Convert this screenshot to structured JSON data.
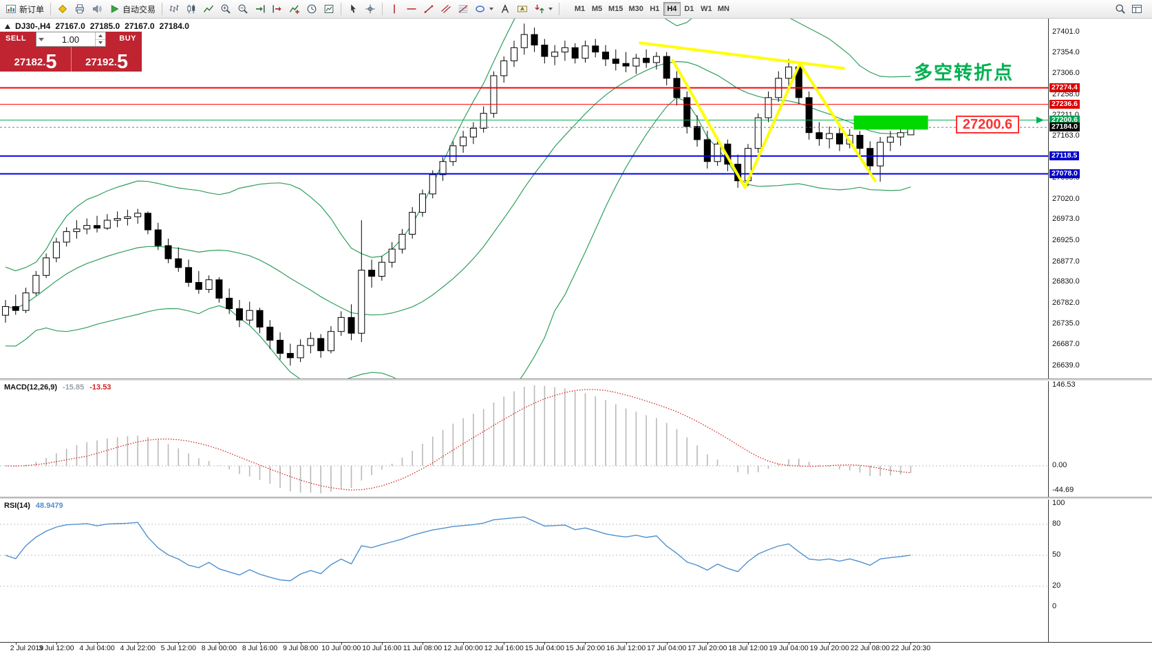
{
  "toolbar": {
    "groups": [
      {
        "items": [
          {
            "name": "new-order-button",
            "icon": "new-order-icon",
            "label": "新订单"
          }
        ]
      },
      {
        "separator": true
      },
      {
        "items": [
          {
            "name": "metaeditor-button",
            "icon": "metaeditor-icon"
          },
          {
            "name": "print-button",
            "icon": "print-icon"
          },
          {
            "name": "alerts-button",
            "icon": "alerts-icon"
          }
        ]
      },
      {
        "items": [
          {
            "name": "autotrading-button",
            "icon": "autotrading-icon",
            "label": "自动交易"
          }
        ]
      },
      {
        "separator": true
      },
      {
        "items": [
          {
            "name": "bar-chart-button",
            "icon": "bar-chart-icon"
          },
          {
            "name": "candlestick-button",
            "icon": "candles-icon"
          },
          {
            "name": "line-chart-button",
            "icon": "line-chart-icon"
          }
        ]
      },
      {
        "items": [
          {
            "name": "zoom-in-button",
            "icon": "zoom-in-icon"
          },
          {
            "name": "zoom-out-button",
            "icon": "zoom-out-icon"
          }
        ]
      },
      {
        "items": [
          {
            "name": "auto-scroll-button",
            "icon": "auto-scroll-icon"
          },
          {
            "name": "chart-shift-button",
            "icon": "chart-shift-icon"
          }
        ]
      },
      {
        "items": [
          {
            "name": "indicators-button",
            "icon": "indicators-icon"
          },
          {
            "name": "periods-button",
            "icon": "periods-icon"
          },
          {
            "name": "templates-button",
            "icon": "templates-icon"
          }
        ]
      },
      {
        "separator": true
      },
      {
        "items": [
          {
            "name": "cursor-button",
            "icon": "cursor-icon"
          },
          {
            "name": "crosshair-button",
            "icon": "crosshair-icon"
          }
        ]
      },
      {
        "separator": true
      },
      {
        "items": [
          {
            "name": "vertical-line-button",
            "icon": "vline-icon"
          },
          {
            "name": "horizontal-line-button",
            "icon": "hline-icon"
          },
          {
            "name": "trendline-button",
            "icon": "trendline-icon"
          },
          {
            "name": "channel-button",
            "icon": "channel-icon"
          },
          {
            "name": "fibonacci-button",
            "icon": "fibonacci-icon"
          }
        ]
      },
      {
        "items": [
          {
            "name": "shapes-button",
            "icon": "shapes-icon",
            "caret": true
          },
          {
            "name": "text-button",
            "icon": "text-icon"
          },
          {
            "name": "text-label-button",
            "icon": "text-label-icon"
          },
          {
            "name": "arrows-button",
            "icon": "arrows-icon",
            "caret": true
          }
        ]
      },
      {
        "separator": true
      }
    ],
    "timeframes": [
      "M1",
      "M5",
      "M15",
      "M30",
      "H1",
      "H4",
      "D1",
      "W1",
      "MN"
    ],
    "active_timeframe": "H4",
    "right_items": [
      {
        "name": "search-button",
        "icon": "search-icon"
      },
      {
        "name": "data-window-button",
        "icon": "data-window-icon"
      }
    ]
  },
  "chart": {
    "symbol_period": "DJ30-,H4",
    "open": "27167.0",
    "high": "27185.0",
    "low": "27167.0",
    "close": "27184.0"
  },
  "trade_panel": {
    "sell_label": "SELL",
    "buy_label": "BUY",
    "volume": "1.00",
    "sell_price_main": "27182.",
    "sell_price_big": "5",
    "buy_price_main": "27192.",
    "buy_price_big": "5",
    "panel_color": "#bf2430"
  },
  "annotations": {
    "turning_point_text": "多空转折点",
    "turning_point_color": "#00b050",
    "callout_text": "27200.6",
    "callout_color": "#ff3030"
  },
  "macd_panel": {
    "title": "MACD(12,26,9)",
    "value_main": "-15.85",
    "value_signal": "-13.53",
    "value_main_color": "#9aa0a6",
    "value_signal_color": "#d42020",
    "scale_labels": [
      "146.53",
      "0.00",
      "-44.69"
    ],
    "histogram_color": "#b8b8b8",
    "signal_color": "#d42020"
  },
  "rsi_panel": {
    "title": "RSI(14)",
    "value": "48.9479",
    "line_color": "#4f8fce",
    "scale_labels": [
      "100",
      "80",
      "50",
      "20",
      "0"
    ]
  },
  "price_axis": {
    "ticks": [
      "27401.0",
      "27354.0",
      "27306.0",
      "27258.0",
      "27211.0",
      "27163.0",
      "27115.0",
      "27068.0",
      "27020.0",
      "26973.0",
      "26925.0",
      "26877.0",
      "26830.0",
      "26782.0",
      "26735.0",
      "26687.0",
      "26639.0"
    ]
  },
  "time_axis": {
    "labels": [
      "2 Jul 2019",
      "3 Jul 12:00",
      "4 Jul 04:00",
      "4 Jul 22:00",
      "5 Jul 12:00",
      "8 Jul 00:00",
      "8 Jul 16:00",
      "9 Jul 08:00",
      "10 Jul 00:00",
      "10 Jul 16:00",
      "11 Jul 08:00",
      "12 Jul 00:00",
      "12 Jul 16:00",
      "15 Jul 04:00",
      "15 Jul 20:00",
      "16 Jul 12:00",
      "17 Jul 04:00",
      "17 Jul 20:00",
      "18 Jul 12:00",
      "19 Jul 04:00",
      "19 Jul 20:00",
      "22 Jul 08:00",
      "22 Jul 20:30"
    ]
  },
  "chart_data": {
    "type": "candlestick",
    "symbol": "DJ30-",
    "timeframe": "H4",
    "ohlc_current": {
      "open": 27167.0,
      "high": 27185.0,
      "low": 27167.0,
      "close": 27184.0
    },
    "axis_max": 27401.0,
    "axis_min": 26639.0,
    "candles": [
      [
        26755,
        26790,
        26738,
        26775
      ],
      [
        26775,
        26802,
        26756,
        26766
      ],
      [
        26766,
        26818,
        26760,
        26806
      ],
      [
        26806,
        26856,
        26800,
        26846
      ],
      [
        26846,
        26896,
        26840,
        26886
      ],
      [
        26886,
        26932,
        26876,
        26922
      ],
      [
        26922,
        26956,
        26912,
        26946
      ],
      [
        26946,
        26972,
        26930,
        26952
      ],
      [
        26952,
        26976,
        26940,
        26960
      ],
      [
        26960,
        26982,
        26944,
        26954
      ],
      [
        26954,
        26986,
        26950,
        26972
      ],
      [
        26972,
        26992,
        26956,
        26976
      ],
      [
        26976,
        26996,
        26960,
        26980
      ],
      [
        26980,
        26998,
        26964,
        26988
      ],
      [
        26988,
        26992,
        26940,
        26950
      ],
      [
        26950,
        26966,
        26904,
        26914
      ],
      [
        26914,
        26930,
        26874,
        26884
      ],
      [
        26884,
        26910,
        26854,
        26864
      ],
      [
        26864,
        26882,
        26820,
        26830
      ],
      [
        26830,
        26856,
        26804,
        26814
      ],
      [
        26814,
        26846,
        26806,
        26836
      ],
      [
        26836,
        26842,
        26784,
        26794
      ],
      [
        26794,
        26816,
        26758,
        26770
      ],
      [
        26770,
        26790,
        26728,
        26744
      ],
      [
        26744,
        26786,
        26734,
        26766
      ],
      [
        26766,
        26772,
        26714,
        26728
      ],
      [
        26728,
        26744,
        26678,
        26698
      ],
      [
        26698,
        26716,
        26654,
        26668
      ],
      [
        26668,
        26690,
        26640,
        26658
      ],
      [
        26658,
        26700,
        26648,
        26686
      ],
      [
        26686,
        26716,
        26668,
        26702
      ],
      [
        26702,
        26712,
        26658,
        26674
      ],
      [
        26674,
        26730,
        26668,
        26718
      ],
      [
        26718,
        26764,
        26708,
        26750
      ],
      [
        26750,
        26780,
        26698,
        26714
      ],
      [
        26714,
        26972,
        26694,
        26858
      ],
      [
        26858,
        26882,
        26818,
        26844
      ],
      [
        26844,
        26890,
        26834,
        26876
      ],
      [
        26876,
        26922,
        26864,
        26906
      ],
      [
        26906,
        26952,
        26896,
        26940
      ],
      [
        26940,
        27002,
        26930,
        26990
      ],
      [
        26990,
        27042,
        26980,
        27032
      ],
      [
        27032,
        27086,
        27022,
        27076
      ],
      [
        27076,
        27116,
        27062,
        27106
      ],
      [
        27106,
        27152,
        27096,
        27142
      ],
      [
        27142,
        27176,
        27126,
        27162
      ],
      [
        27162,
        27196,
        27146,
        27182
      ],
      [
        27182,
        27232,
        27172,
        27216
      ],
      [
        27216,
        27312,
        27206,
        27302
      ],
      [
        27302,
        27346,
        27286,
        27336
      ],
      [
        27336,
        27382,
        27322,
        27366
      ],
      [
        27366,
        27421,
        27350,
        27396
      ],
      [
        27396,
        27412,
        27356,
        27372
      ],
      [
        27372,
        27386,
        27330,
        27346
      ],
      [
        27346,
        27372,
        27326,
        27356
      ],
      [
        27356,
        27382,
        27336,
        27366
      ],
      [
        27366,
        27376,
        27330,
        27342
      ],
      [
        27342,
        27382,
        27332,
        27370
      ],
      [
        27370,
        27386,
        27344,
        27356
      ],
      [
        27356,
        27372,
        27324,
        27340
      ],
      [
        27340,
        27362,
        27314,
        27330
      ],
      [
        27330,
        27356,
        27310,
        27324
      ],
      [
        27324,
        27352,
        27306,
        27342
      ],
      [
        27342,
        27362,
        27320,
        27332
      ],
      [
        27332,
        27356,
        27316,
        27346
      ],
      [
        27346,
        27356,
        27280,
        27296
      ],
      [
        27296,
        27312,
        27234,
        27252
      ],
      [
        27252,
        27266,
        27170,
        27186
      ],
      [
        27186,
        27212,
        27140,
        27156
      ],
      [
        27156,
        27176,
        27090,
        27106
      ],
      [
        27106,
        27162,
        27096,
        27146
      ],
      [
        27146,
        27156,
        27084,
        27100
      ],
      [
        27100,
        27122,
        27046,
        27062
      ],
      [
        27062,
        27146,
        27050,
        27136
      ],
      [
        27136,
        27216,
        27126,
        27206
      ],
      [
        27206,
        27266,
        27196,
        27252
      ],
      [
        27252,
        27312,
        27242,
        27296
      ],
      [
        27296,
        27340,
        27276,
        27322
      ],
      [
        27322,
        27332,
        27236,
        27252
      ],
      [
        27252,
        27266,
        27156,
        27172
      ],
      [
        27172,
        27196,
        27142,
        27158
      ],
      [
        27158,
        27186,
        27136,
        27170
      ],
      [
        27170,
        27182,
        27130,
        27146
      ],
      [
        27146,
        27180,
        27136,
        27166
      ],
      [
        27166,
        27176,
        27120,
        27136
      ],
      [
        27136,
        27152,
        27078,
        27096
      ],
      [
        27096,
        27162,
        27060,
        27150
      ],
      [
        27150,
        27176,
        27130,
        27162
      ],
      [
        27162,
        27186,
        27142,
        27172
      ],
      [
        27167,
        27185,
        27167,
        27184
      ]
    ],
    "levels": [
      {
        "price": 27274.4,
        "label": "27274.4",
        "color": "#ff0000",
        "line_width": 2,
        "tag_bg": "#dd0000"
      },
      {
        "price": 27236.6,
        "label": "27236.6",
        "color": "#ff0000",
        "line_width": 1,
        "tag_bg": "#dd0000"
      },
      {
        "price": 27200.6,
        "label": "27200.6",
        "color": "#00b050",
        "line_width": 1,
        "tag_bg": "#00a050",
        "end_arrows": true
      },
      {
        "price": 27118.5,
        "label": "27118.5",
        "color": "#0000ee",
        "line_width": 2,
        "tag_bg": "#0000cc"
      },
      {
        "price": 27078.0,
        "label": "27078.0",
        "color": "#0000ee",
        "line_width": 2,
        "tag_bg": "#0000cc"
      }
    ],
    "current_price": {
      "price": 27184.0,
      "label": "27184.0",
      "tag_bg": "#000000"
    },
    "bollinger": {
      "period": 20,
      "deviation": 2,
      "color": "#2e9e5b"
    },
    "macd": {
      "fast": 12,
      "slow": 26,
      "signal": 9,
      "scale_max": 146.53,
      "scale_min": -44.69
    },
    "rsi": {
      "period": 14,
      "current": 48.9479,
      "levels": [
        80,
        50,
        20
      ]
    },
    "drawings": {
      "top_line": {
        "points": [
          [
            62.4,
            27377
          ],
          [
            82.4,
            27319
          ]
        ],
        "color": "#ffff00",
        "width": 4
      },
      "zigzag": {
        "points": [
          [
            65.6,
            27337
          ],
          [
            72.7,
            27047
          ],
          [
            78.1,
            27330
          ],
          [
            85.5,
            27062
          ]
        ],
        "color": "#ffff00",
        "width": 4
      },
      "highlight_box": {
        "i1": 83.4,
        "i2": 90.7,
        "price_top": 27211,
        "price_bottom": 27179,
        "color": "#00d800"
      }
    }
  }
}
